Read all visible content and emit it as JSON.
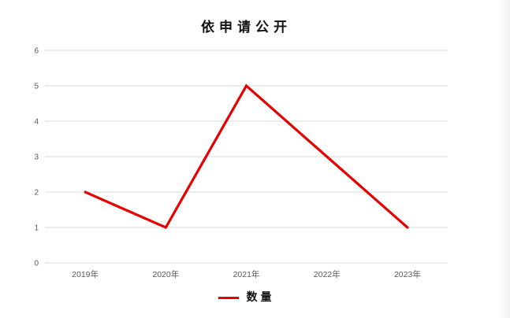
{
  "chart_data": {
    "type": "line",
    "title": "依申请公开",
    "categories": [
      "2019年",
      "2020年",
      "2021年",
      "2022年",
      "2023年"
    ],
    "series": [
      {
        "name": "数量",
        "values": [
          2,
          1,
          5,
          3,
          1
        ],
        "color": "#e60000"
      }
    ],
    "ylim": [
      0,
      6
    ],
    "yticks": [
      0,
      1,
      2,
      3,
      4,
      5,
      6
    ],
    "grid": "horizontal",
    "legend_position": "bottom",
    "gridline_color": "#d9d9d9",
    "axis_label_color": "#595959"
  },
  "legend": {
    "label": "数量"
  }
}
